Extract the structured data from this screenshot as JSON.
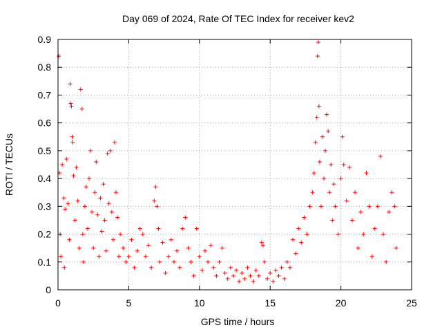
{
  "chart_data": {
    "type": "scatter",
    "title": "Day 069 of 2024, Rate Of TEC Index for receiver kev2",
    "xlabel": "GPS time / hours",
    "ylabel": "ROTI / TECUs",
    "xlim": [
      0,
      25
    ],
    "ylim": [
      0,
      0.9
    ],
    "xticks": [
      "0",
      "5",
      "10",
      "15",
      "20",
      "25"
    ],
    "yticks": [
      "0",
      "0.1",
      "0.2",
      "0.3",
      "0.4",
      "0.5",
      "0.6",
      "0.7",
      "0.8",
      "0.9"
    ],
    "grid": true,
    "marker": "+",
    "color": "#ff0000",
    "series": [
      {
        "name": "ROTI",
        "points": [
          [
            0.05,
            0.84
          ],
          [
            0.1,
            0.42
          ],
          [
            0.15,
            0.2
          ],
          [
            0.2,
            0.12
          ],
          [
            0.3,
            0.45
          ],
          [
            0.4,
            0.33
          ],
          [
            0.45,
            0.08
          ],
          [
            0.5,
            0.29
          ],
          [
            0.6,
            0.47
          ],
          [
            0.7,
            0.31
          ],
          [
            0.8,
            0.18
          ],
          [
            0.85,
            0.74
          ],
          [
            0.9,
            0.67
          ],
          [
            0.95,
            0.66
          ],
          [
            1.0,
            0.55
          ],
          [
            1.05,
            0.53
          ],
          [
            1.1,
            0.41
          ],
          [
            1.2,
            0.25
          ],
          [
            1.3,
            0.44
          ],
          [
            1.4,
            0.32
          ],
          [
            1.5,
            0.15
          ],
          [
            1.6,
            0.72
          ],
          [
            1.7,
            0.65
          ],
          [
            1.75,
            0.2
          ],
          [
            1.8,
            0.1
          ],
          [
            1.9,
            0.3
          ],
          [
            2.0,
            0.37
          ],
          [
            2.1,
            0.22
          ],
          [
            2.2,
            0.4
          ],
          [
            2.3,
            0.5
          ],
          [
            2.4,
            0.28
          ],
          [
            2.5,
            0.15
          ],
          [
            2.6,
            0.35
          ],
          [
            2.7,
            0.46
          ],
          [
            2.8,
            0.27
          ],
          [
            2.9,
            0.12
          ],
          [
            3.0,
            0.33
          ],
          [
            3.1,
            0.21
          ],
          [
            3.2,
            0.38
          ],
          [
            3.3,
            0.25
          ],
          [
            3.4,
            0.14
          ],
          [
            3.5,
            0.49
          ],
          [
            3.6,
            0.31
          ],
          [
            3.7,
            0.5
          ],
          [
            3.8,
            0.28
          ],
          [
            3.9,
            0.18
          ],
          [
            4.0,
            0.53
          ],
          [
            4.1,
            0.35
          ],
          [
            4.2,
            0.26
          ],
          [
            4.3,
            0.12
          ],
          [
            4.4,
            0.2
          ],
          [
            4.6,
            0.15
          ],
          [
            4.8,
            0.1
          ],
          [
            5.0,
            0.12
          ],
          [
            5.2,
            0.18
          ],
          [
            5.4,
            0.08
          ],
          [
            5.6,
            0.14
          ],
          [
            5.8,
            0.22
          ],
          [
            6.0,
            0.2
          ],
          [
            6.2,
            0.12
          ],
          [
            6.4,
            0.16
          ],
          [
            6.6,
            0.08
          ],
          [
            6.8,
            0.32
          ],
          [
            6.9,
            0.37
          ],
          [
            7.0,
            0.3
          ],
          [
            7.1,
            0.22
          ],
          [
            7.2,
            0.1
          ],
          [
            7.4,
            0.17
          ],
          [
            7.6,
            0.06
          ],
          [
            7.8,
            0.12
          ],
          [
            8.0,
            0.18
          ],
          [
            8.2,
            0.1
          ],
          [
            8.4,
            0.14
          ],
          [
            8.6,
            0.08
          ],
          [
            8.8,
            0.22
          ],
          [
            9.0,
            0.26
          ],
          [
            9.2,
            0.15
          ],
          [
            9.4,
            0.1
          ],
          [
            9.6,
            0.05
          ],
          [
            9.8,
            0.22
          ],
          [
            10.0,
            0.12
          ],
          [
            10.2,
            0.07
          ],
          [
            10.4,
            0.14
          ],
          [
            10.6,
            0.1
          ],
          [
            10.8,
            0.16
          ],
          [
            11.0,
            0.08
          ],
          [
            11.2,
            0.05
          ],
          [
            11.4,
            0.1
          ],
          [
            11.6,
            0.15
          ],
          [
            11.8,
            0.06
          ],
          [
            12.0,
            0.04
          ],
          [
            12.2,
            0.08
          ],
          [
            12.4,
            0.05
          ],
          [
            12.6,
            0.07
          ],
          [
            12.8,
            0.03
          ],
          [
            13.0,
            0.06
          ],
          [
            13.2,
            0.04
          ],
          [
            13.4,
            0.08
          ],
          [
            13.6,
            0.05
          ],
          [
            13.8,
            0.03
          ],
          [
            14.0,
            0.07
          ],
          [
            14.2,
            0.05
          ],
          [
            14.4,
            0.17
          ],
          [
            14.5,
            0.16
          ],
          [
            14.6,
            0.1
          ],
          [
            14.8,
            0.04
          ],
          [
            15.0,
            0.06
          ],
          [
            15.2,
            0.03
          ],
          [
            15.4,
            0.07
          ],
          [
            15.6,
            0.05
          ],
          [
            15.8,
            0.08
          ],
          [
            16.0,
            0.04
          ],
          [
            16.2,
            0.1
          ],
          [
            16.4,
            0.08
          ],
          [
            16.6,
            0.18
          ],
          [
            16.8,
            0.13
          ],
          [
            17.0,
            0.22
          ],
          [
            17.2,
            0.17
          ],
          [
            17.4,
            0.26
          ],
          [
            17.6,
            0.2
          ],
          [
            17.8,
            0.3
          ],
          [
            18.0,
            0.35
          ],
          [
            18.1,
            0.42
          ],
          [
            18.2,
            0.53
          ],
          [
            18.3,
            0.62
          ],
          [
            18.35,
            0.84
          ],
          [
            18.4,
            0.89
          ],
          [
            18.45,
            0.66
          ],
          [
            18.5,
            0.46
          ],
          [
            18.6,
            0.3
          ],
          [
            18.7,
            0.55
          ],
          [
            18.8,
            0.4
          ],
          [
            18.9,
            0.5
          ],
          [
            19.0,
            0.63
          ],
          [
            19.1,
            0.57
          ],
          [
            19.2,
            0.35
          ],
          [
            19.3,
            0.45
          ],
          [
            19.4,
            0.25
          ],
          [
            19.5,
            0.38
          ],
          [
            19.6,
            0.3
          ],
          [
            19.8,
            0.2
          ],
          [
            20.0,
            0.4
          ],
          [
            20.1,
            0.55
          ],
          [
            20.2,
            0.45
          ],
          [
            20.4,
            0.32
          ],
          [
            20.6,
            0.44
          ],
          [
            20.8,
            0.25
          ],
          [
            21.0,
            0.35
          ],
          [
            21.2,
            0.15
          ],
          [
            21.4,
            0.28
          ],
          [
            21.6,
            0.2
          ],
          [
            21.8,
            0.42
          ],
          [
            22.0,
            0.3
          ],
          [
            22.2,
            0.12
          ],
          [
            22.4,
            0.22
          ],
          [
            22.6,
            0.3
          ],
          [
            22.8,
            0.48
          ],
          [
            23.0,
            0.2
          ],
          [
            23.2,
            0.1
          ],
          [
            23.4,
            0.28
          ],
          [
            23.6,
            0.35
          ],
          [
            23.8,
            0.3
          ],
          [
            23.9,
            0.15
          ]
        ]
      }
    ]
  }
}
